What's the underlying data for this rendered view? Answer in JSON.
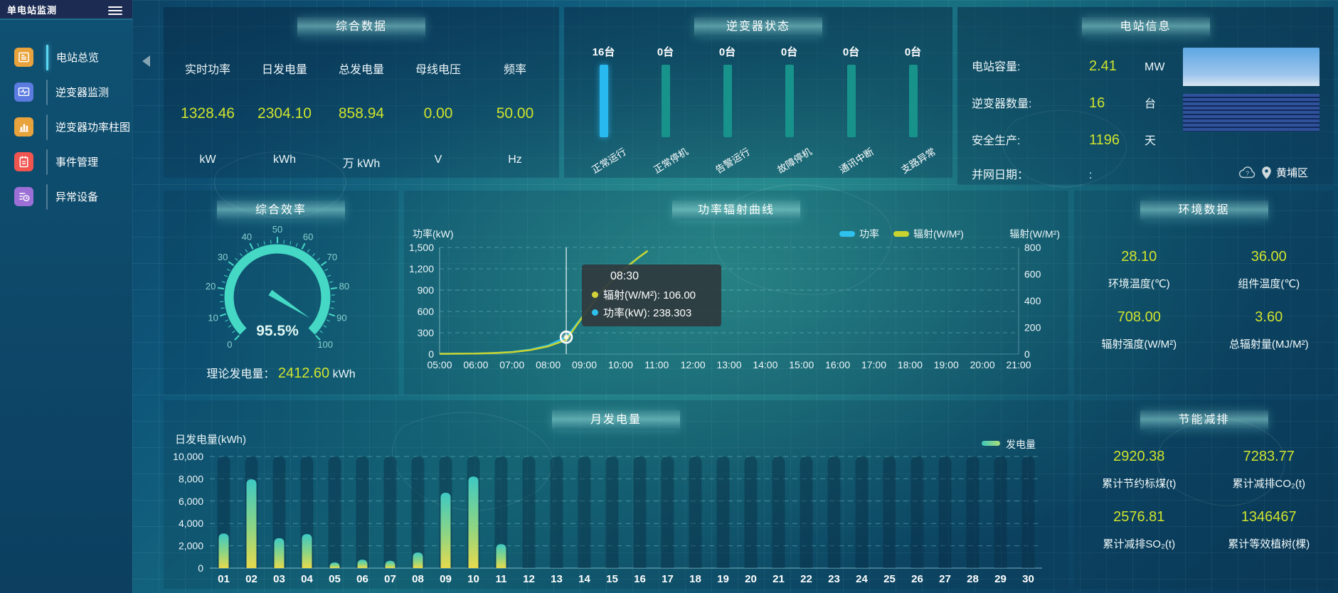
{
  "app": {
    "title": "单电站监测"
  },
  "colors": {
    "value_yellow": "#cfe32d",
    "accent_teal": "#45d9c5",
    "power_blue": "#2ec1ee",
    "radiation_yellow": "#c9d32f",
    "inverter_bar_highlight": "#29b9f1",
    "inverter_bar_normal": "#17938c"
  },
  "sidebar": {
    "menu": [
      {
        "label": "电站总览",
        "icon": "doc-icon",
        "color": "#e8a33d",
        "active": true
      },
      {
        "label": "逆变器监测",
        "icon": "monitor-icon",
        "color": "#5b7be0",
        "active": false
      },
      {
        "label": "逆变器功率柱图",
        "icon": "barchart-icon",
        "color": "#e8a33d",
        "active": false
      },
      {
        "label": "事件管理",
        "icon": "notebook-icon",
        "color": "#f05550",
        "active": false
      },
      {
        "label": "异常设备",
        "icon": "device-alert-icon",
        "color": "#9b6fd6",
        "active": false
      }
    ]
  },
  "summary": {
    "title": "综合数据",
    "metrics": [
      {
        "label": "实时功率",
        "value": "1328.46",
        "unit": "kW"
      },
      {
        "label": "日发电量",
        "value": "2304.10",
        "unit": "kWh"
      },
      {
        "label": "总发电量",
        "value": "858.94",
        "unit": "万 kWh"
      },
      {
        "label": "母线电压",
        "value": "0.00",
        "unit": "V"
      },
      {
        "label": "频率",
        "value": "50.00",
        "unit": "Hz"
      }
    ]
  },
  "inverter_status": {
    "title": "逆变器状态",
    "unit_suffix": "台",
    "statuses": [
      {
        "count": "16",
        "label": "正常运行",
        "highlight": true
      },
      {
        "count": "0",
        "label": "正常停机",
        "highlight": false
      },
      {
        "count": "0",
        "label": "告警运行",
        "highlight": false
      },
      {
        "count": "0",
        "label": "故障停机",
        "highlight": false
      },
      {
        "count": "0",
        "label": "通讯中断",
        "highlight": false
      },
      {
        "count": "0",
        "label": "支路异常",
        "highlight": false
      }
    ]
  },
  "station_info": {
    "title": "电站信息",
    "rows": [
      {
        "label": "电站容量:",
        "value": "2.41",
        "unit": "MW"
      },
      {
        "label": "逆变器数量:",
        "value": "16",
        "unit": "台"
      },
      {
        "label": "安全生产:",
        "value": "1196",
        "unit": "天"
      }
    ],
    "grid_date_label": "并网日期：",
    "grid_date_value": ":",
    "location": "黄埔区"
  },
  "efficiency": {
    "title": "综合效率",
    "value_text": "95.5%",
    "theory_label": "理论发电量：",
    "theory_value": "2412.60",
    "theory_unit": "kWh"
  },
  "power_curve": {
    "title": "功率辐射曲线",
    "tooltip": {
      "time": "08:30",
      "items": [
        {
          "label": "辐射(W/M²)",
          "value": "106.00",
          "color": "#d4d23a"
        },
        {
          "label": "功率(kW)",
          "value": "238.303",
          "color": "#2ec1ee"
        }
      ]
    }
  },
  "environment": {
    "title": "环境数据",
    "metrics": [
      {
        "value": "28.10",
        "label": "环境温度(℃)"
      },
      {
        "value": "36.00",
        "label": "组件温度(℃)"
      },
      {
        "value": "708.00",
        "label": "辐射强度(W/M²)"
      },
      {
        "value": "3.60",
        "label": "总辐射量(MJ/M²)"
      }
    ]
  },
  "monthly": {
    "title": "月发电量"
  },
  "saving": {
    "title": "节能减排",
    "metrics": [
      {
        "value": "2920.38",
        "label": "累计节约标煤(t)"
      },
      {
        "value": "7283.77",
        "label": "累计减排CO₂(t)"
      },
      {
        "value": "2576.81",
        "label": "累计减排SO₂(t)"
      },
      {
        "value": "1346467",
        "label": "累计等效植树(棵)"
      }
    ]
  },
  "chart_data": [
    {
      "id": "efficiency_gauge",
      "type": "gauge",
      "title": "综合效率",
      "min": 0,
      "max": 100,
      "value": 95.5,
      "value_text": "95.5%",
      "tick_labels": [
        0,
        10,
        20,
        30,
        40,
        50,
        60,
        70,
        80,
        90,
        100
      ]
    },
    {
      "id": "power_radiation_curve",
      "type": "line",
      "title": "功率辐射曲线",
      "x_labels": [
        "05:00",
        "06:00",
        "07:00",
        "08:00",
        "09:00",
        "10:00",
        "11:00",
        "12:00",
        "13:00",
        "14:00",
        "15:00",
        "16:00",
        "17:00",
        "18:00",
        "19:00",
        "20:00",
        "21:00"
      ],
      "x_range_hours": [
        5,
        21
      ],
      "y_left": {
        "title": "功率(kW)",
        "ticks": [
          0,
          300,
          600,
          900,
          1200,
          1500
        ],
        "max": 1500
      },
      "y_right": {
        "title": "辐射(W/M²)",
        "ticks": [
          0,
          200,
          400,
          600,
          800
        ],
        "max": 800
      },
      "legend": [
        {
          "label": "功率",
          "color": "#2ec1ee"
        },
        {
          "label": "辐射(W/M²)",
          "color": "#c9d32f"
        }
      ],
      "series": [
        {
          "name": "功率",
          "axis": "left",
          "color": "#2ec1ee",
          "points": [
            [
              5,
              5
            ],
            [
              5.5,
              6
            ],
            [
              6,
              9
            ],
            [
              6.5,
              15
            ],
            [
              7,
              30
            ],
            [
              7.5,
              62
            ],
            [
              8,
              122
            ],
            [
              8.5,
              238.3
            ],
            [
              9,
              560
            ],
            [
              9.5,
              900
            ],
            [
              10,
              1160
            ],
            [
              10.5,
              1360
            ],
            [
              10.75,
              1450
            ]
          ]
        },
        {
          "name": "辐射(W/M²)",
          "axis": "right",
          "color": "#c9d32f",
          "points": [
            [
              5,
              2
            ],
            [
              5.5,
              3
            ],
            [
              6,
              4
            ],
            [
              6.5,
              8
            ],
            [
              7,
              15
            ],
            [
              7.5,
              30
            ],
            [
              8,
              58
            ],
            [
              8.5,
              106
            ],
            [
              9,
              300
            ],
            [
              9.5,
              480
            ],
            [
              10,
              615
            ],
            [
              10.5,
              725
            ],
            [
              10.75,
              775
            ]
          ]
        }
      ],
      "pointer": {
        "x": 8.5,
        "marker_series": 0,
        "marker_value": 238.3
      }
    },
    {
      "id": "monthly_generation",
      "type": "bar",
      "title": "月发电量",
      "ylabel": "日发电量(kWh)",
      "legend": "发电量",
      "ylim": [
        0,
        10000
      ],
      "y_ticks": [
        0,
        2000,
        4000,
        6000,
        8000,
        10000
      ],
      "categories": [
        "01",
        "02",
        "03",
        "04",
        "05",
        "06",
        "07",
        "08",
        "09",
        "10",
        "11",
        "12",
        "13",
        "14",
        "15",
        "16",
        "17",
        "18",
        "19",
        "20",
        "21",
        "22",
        "23",
        "24",
        "25",
        "26",
        "27",
        "28",
        "29",
        "30"
      ],
      "values": [
        3100,
        7950,
        2680,
        3050,
        510,
        760,
        660,
        1400,
        6750,
        8200,
        2150,
        0,
        0,
        0,
        0,
        0,
        0,
        0,
        0,
        0,
        0,
        0,
        0,
        0,
        0,
        0,
        0,
        0,
        0,
        0
      ]
    },
    {
      "id": "inverter_status_bars",
      "type": "bar",
      "categories": [
        "正常运行",
        "正常停机",
        "告警运行",
        "故障停机",
        "通讯中断",
        "支路异常"
      ],
      "values": [
        16,
        0,
        0,
        0,
        0,
        0
      ]
    }
  ]
}
